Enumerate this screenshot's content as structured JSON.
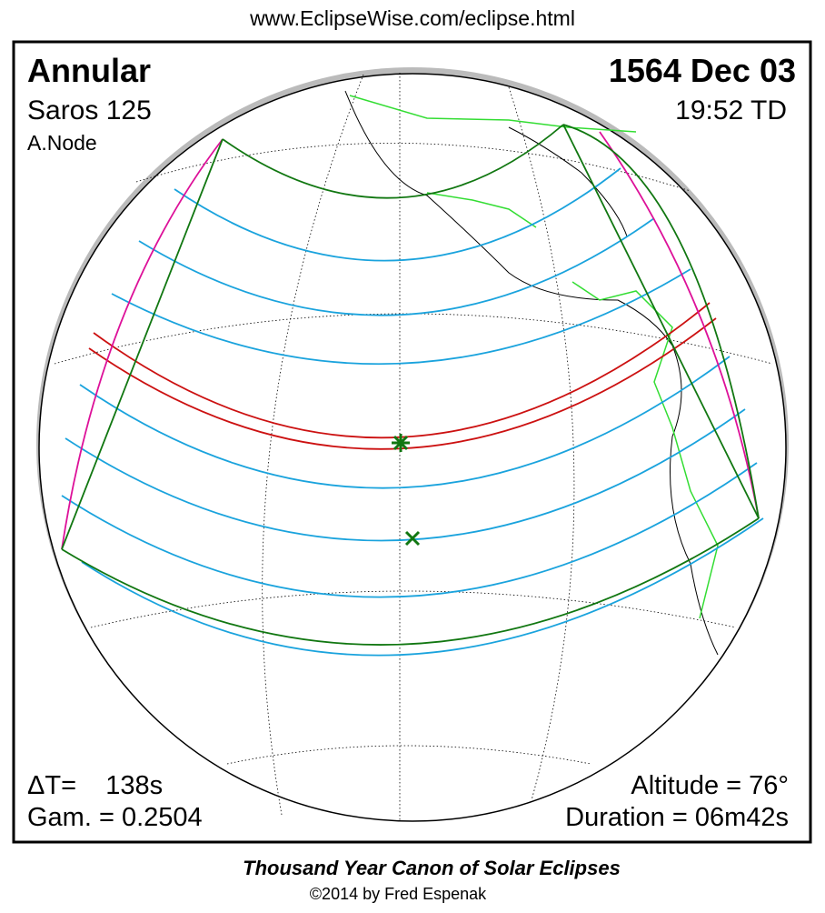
{
  "header": {
    "url": "www.EclipseWise.com/eclipse.html"
  },
  "eclipse": {
    "type": "Annular",
    "saros": "Saros 125",
    "node": "A.Node",
    "date": "1564 Dec 03",
    "time": "19:52 TD",
    "delta_t": "ΔT=    138s",
    "gamma": "Gam. = 0.2504",
    "altitude": "Altitude = 76°",
    "duration": "Duration = 06m42s"
  },
  "footer": {
    "title": "Thousand Year Canon of Solar Eclipses",
    "credit": "©2014 by Fred Espenak"
  }
}
